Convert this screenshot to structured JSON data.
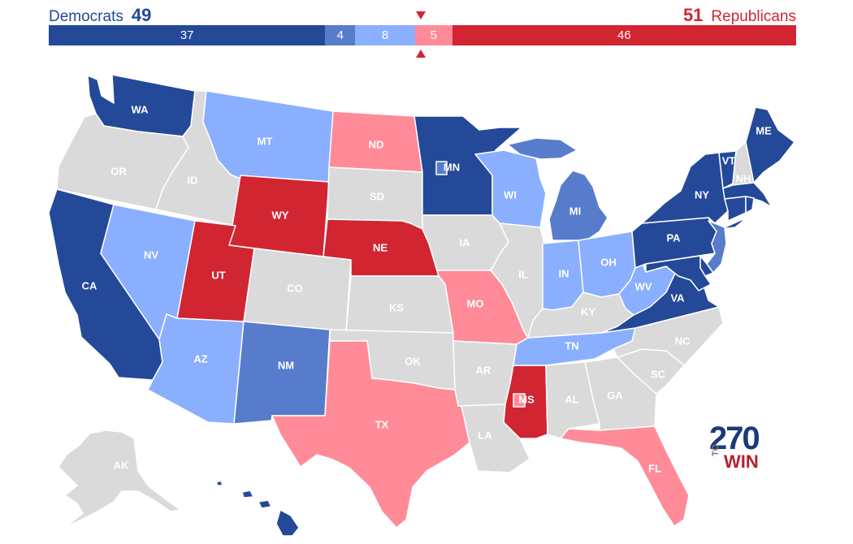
{
  "header": {
    "dem_label": "Democrats",
    "dem_total": "49",
    "rep_label": "Republicans",
    "rep_total": "51"
  },
  "balance": [
    {
      "value": 37,
      "label": "37",
      "color": "#244999",
      "text_color": "#ffffff"
    },
    {
      "value": 4,
      "label": "4",
      "color": "#577ccc",
      "text_color": "#ffffff"
    },
    {
      "value": 8,
      "label": "8",
      "color": "#8aafff",
      "text_color": "#ffffff"
    },
    {
      "value": 5,
      "label": "5",
      "color": "#ff8b98",
      "text_color": "#ffffff"
    },
    {
      "value": 46,
      "label": "46",
      "color": "#d22532",
      "text_color": "#ffffff"
    }
  ],
  "colors": {
    "safe_dem": "#244999",
    "likely_dem": "#577ccc",
    "lean_dem": "#8aafff",
    "lean_rep": "#ff8b98",
    "safe_rep": "#d22532",
    "no_race": "#dadada",
    "label_on_gray": "#ffffff",
    "label_hi": "#000000"
  },
  "states": [
    {
      "abbr": "WA",
      "status": "safe_dem"
    },
    {
      "abbr": "OR",
      "status": "no_race"
    },
    {
      "abbr": "CA",
      "status": "safe_dem"
    },
    {
      "abbr": "ID",
      "status": "no_race"
    },
    {
      "abbr": "NV",
      "status": "lean_dem"
    },
    {
      "abbr": "MT",
      "status": "lean_dem"
    },
    {
      "abbr": "WY",
      "status": "safe_rep"
    },
    {
      "abbr": "UT",
      "status": "safe_rep"
    },
    {
      "abbr": "AZ",
      "status": "lean_dem"
    },
    {
      "abbr": "CO",
      "status": "no_race"
    },
    {
      "abbr": "NM",
      "status": "likely_dem"
    },
    {
      "abbr": "ND",
      "status": "lean_rep"
    },
    {
      "abbr": "SD",
      "status": "no_race"
    },
    {
      "abbr": "NE",
      "status": "safe_rep"
    },
    {
      "abbr": "KS",
      "status": "no_race"
    },
    {
      "abbr": "OK",
      "status": "no_race"
    },
    {
      "abbr": "TX",
      "status": "lean_rep"
    },
    {
      "abbr": "MN",
      "status": "safe_dem"
    },
    {
      "abbr": "IA",
      "status": "no_race"
    },
    {
      "abbr": "MO",
      "status": "lean_rep"
    },
    {
      "abbr": "AR",
      "status": "no_race"
    },
    {
      "abbr": "LA",
      "status": "no_race"
    },
    {
      "abbr": "WI",
      "status": "lean_dem"
    },
    {
      "abbr": "IL",
      "status": "no_race"
    },
    {
      "abbr": "MS",
      "status": "safe_rep"
    },
    {
      "abbr": "MI",
      "status": "likely_dem"
    },
    {
      "abbr": "IN",
      "status": "lean_dem"
    },
    {
      "abbr": "OH",
      "status": "lean_dem"
    },
    {
      "abbr": "KY",
      "status": "no_race"
    },
    {
      "abbr": "TN",
      "status": "lean_dem"
    },
    {
      "abbr": "AL",
      "status": "no_race"
    },
    {
      "abbr": "GA",
      "status": "no_race"
    },
    {
      "abbr": "FL",
      "status": "lean_rep"
    },
    {
      "abbr": "SC",
      "status": "no_race"
    },
    {
      "abbr": "NC",
      "status": "no_race"
    },
    {
      "abbr": "VA",
      "status": "safe_dem"
    },
    {
      "abbr": "WV",
      "status": "lean_dem"
    },
    {
      "abbr": "PA",
      "status": "safe_dem"
    },
    {
      "abbr": "NY",
      "status": "safe_dem"
    },
    {
      "abbr": "VT",
      "status": "safe_dem"
    },
    {
      "abbr": "NH",
      "status": "no_race"
    },
    {
      "abbr": "ME",
      "status": "safe_dem"
    },
    {
      "abbr": "MA",
      "status": "safe_dem"
    },
    {
      "abbr": "CT",
      "status": "safe_dem"
    },
    {
      "abbr": "RI",
      "status": "safe_dem"
    },
    {
      "abbr": "NJ",
      "status": "likely_dem"
    },
    {
      "abbr": "DE",
      "status": "safe_dem"
    },
    {
      "abbr": "MD",
      "status": "safe_dem"
    },
    {
      "abbr": "AK",
      "status": "no_race"
    },
    {
      "abbr": "HI",
      "status": "safe_dem"
    }
  ],
  "special_elections": [
    {
      "state": "MN",
      "status": "likely_dem"
    },
    {
      "state": "MS",
      "status": "lean_rep"
    }
  ],
  "logo": {
    "top": "270",
    "to": "TO",
    "bottom": "WIN"
  }
}
